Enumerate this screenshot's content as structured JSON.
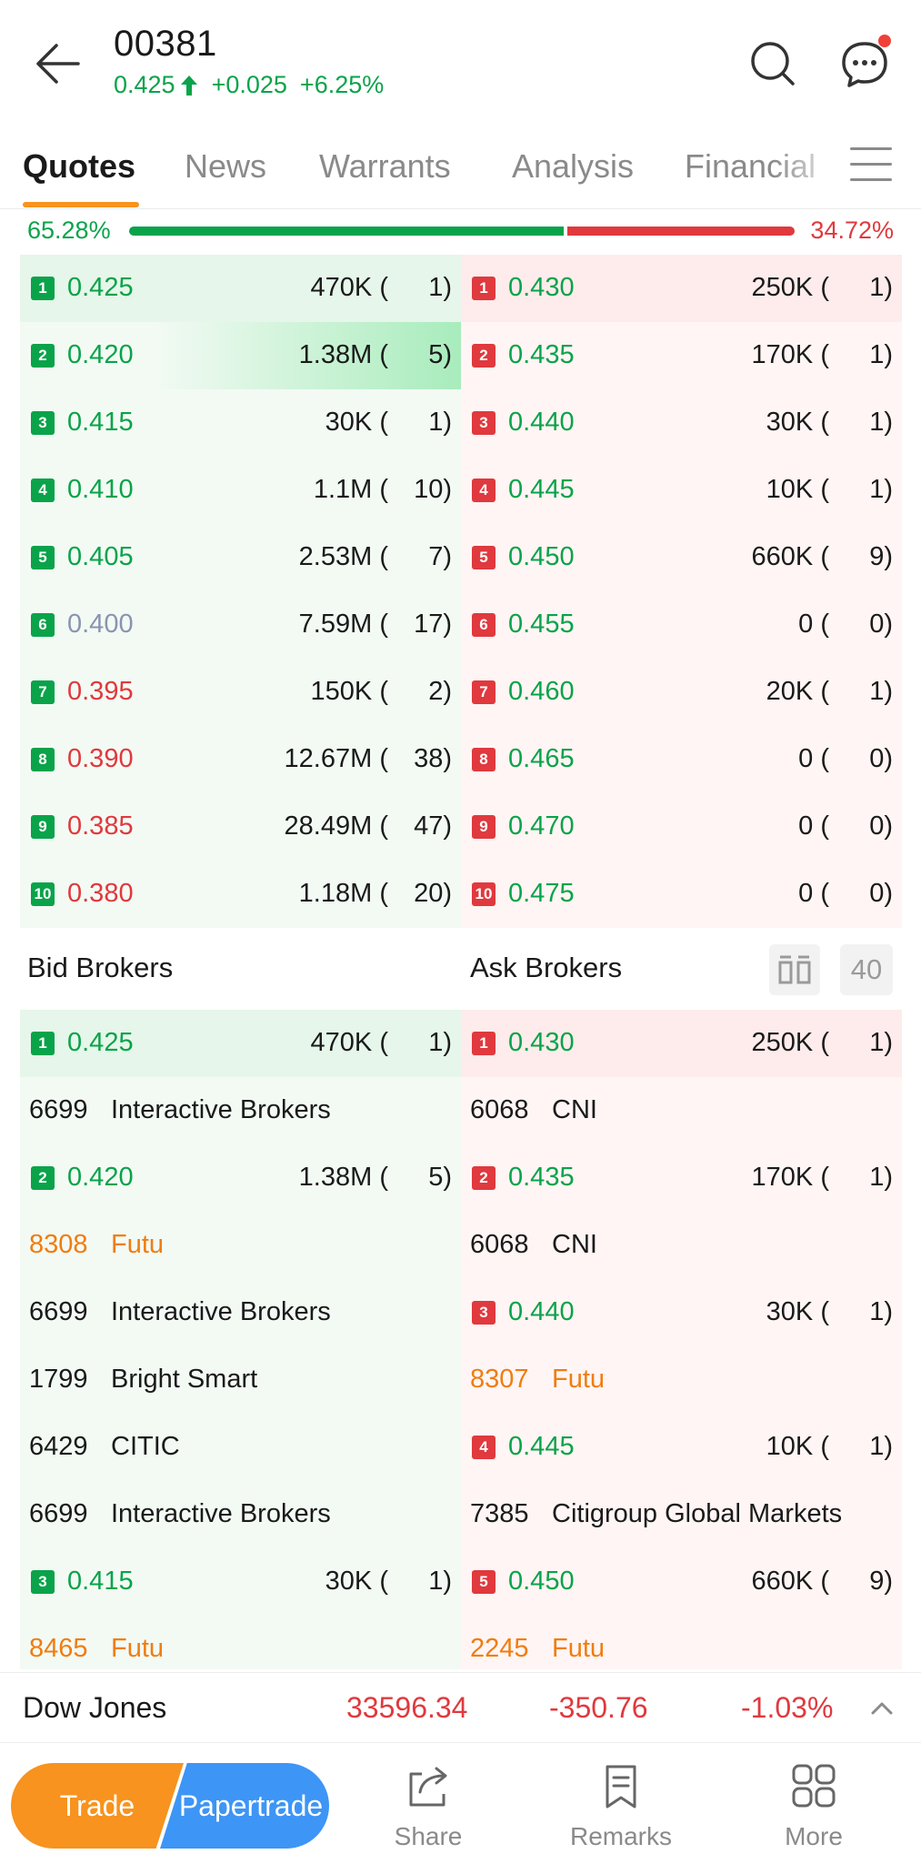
{
  "header": {
    "ticker": "00381",
    "price": "0.425",
    "change": "+0.025",
    "change_pct": "+6.25%"
  },
  "tabs": [
    {
      "label": "Quotes",
      "active": true
    },
    {
      "label": "News"
    },
    {
      "label": "Warrants"
    },
    {
      "label": "Analysis"
    },
    {
      "label": "Financial"
    }
  ],
  "ratio": {
    "bid_pct": "65.28%",
    "ask_pct": "34.72%",
    "bid_fraction": 0.6528
  },
  "book": {
    "bids": [
      {
        "level": "1",
        "price": "0.425",
        "color": "green",
        "volume": "470K (",
        "count": "1)"
      },
      {
        "level": "2",
        "price": "0.420",
        "color": "green",
        "volume": "1.38M (",
        "count": "5)",
        "depth": 0.7
      },
      {
        "level": "3",
        "price": "0.415",
        "color": "green",
        "volume": "30K (",
        "count": "1)"
      },
      {
        "level": "4",
        "price": "0.410",
        "color": "green",
        "volume": "1.1M (",
        "count": "10)"
      },
      {
        "level": "5",
        "price": "0.405",
        "color": "green",
        "volume": "2.53M (",
        "count": "7)"
      },
      {
        "level": "6",
        "price": "0.400",
        "color": "gray",
        "volume": "7.59M (",
        "count": "17)"
      },
      {
        "level": "7",
        "price": "0.395",
        "color": "red",
        "volume": "150K (",
        "count": "2)"
      },
      {
        "level": "8",
        "price": "0.390",
        "color": "red",
        "volume": "12.67M (",
        "count": "38)"
      },
      {
        "level": "9",
        "price": "0.385",
        "color": "red",
        "volume": "28.49M (",
        "count": "47)"
      },
      {
        "level": "10",
        "price": "0.380",
        "color": "red",
        "volume": "1.18M (",
        "count": "20)"
      }
    ],
    "asks": [
      {
        "level": "1",
        "price": "0.430",
        "color": "green",
        "volume": "250K (",
        "count": "1)"
      },
      {
        "level": "2",
        "price": "0.435",
        "color": "green",
        "volume": "170K (",
        "count": "1)"
      },
      {
        "level": "3",
        "price": "0.440",
        "color": "green",
        "volume": "30K (",
        "count": "1)"
      },
      {
        "level": "4",
        "price": "0.445",
        "color": "green",
        "volume": "10K (",
        "count": "1)"
      },
      {
        "level": "5",
        "price": "0.450",
        "color": "green",
        "volume": "660K (",
        "count": "9)"
      },
      {
        "level": "6",
        "price": "0.455",
        "color": "green",
        "volume": "0 (",
        "count": "0)"
      },
      {
        "level": "7",
        "price": "0.460",
        "color": "green",
        "volume": "20K (",
        "count": "1)"
      },
      {
        "level": "8",
        "price": "0.465",
        "color": "green",
        "volume": "0 (",
        "count": "0)"
      },
      {
        "level": "9",
        "price": "0.470",
        "color": "green",
        "volume": "0 (",
        "count": "0)"
      },
      {
        "level": "10",
        "price": "0.475",
        "color": "green",
        "volume": "0 (",
        "count": "0)"
      }
    ]
  },
  "brokers": {
    "bid_title": "Bid Brokers",
    "ask_title": "Ask Brokers",
    "count_button": "40",
    "bid_rows": [
      {
        "type": "level",
        "level": "1",
        "price": "0.425",
        "volume": "470K (",
        "count": "1)"
      },
      {
        "type": "broker",
        "id": "6699",
        "name": "Interactive Brokers",
        "color": "plain"
      },
      {
        "type": "level",
        "level": "2",
        "price": "0.420",
        "volume": "1.38M (",
        "count": "5)"
      },
      {
        "type": "broker",
        "id": "8308",
        "name": "Futu",
        "color": "orange"
      },
      {
        "type": "broker",
        "id": "6699",
        "name": "Interactive Brokers",
        "color": "plain"
      },
      {
        "type": "broker",
        "id": "1799",
        "name": "Bright Smart",
        "color": "plain"
      },
      {
        "type": "broker",
        "id": "6429",
        "name": "CITIC",
        "color": "plain"
      },
      {
        "type": "broker",
        "id": "6699",
        "name": "Interactive Brokers",
        "color": "plain"
      },
      {
        "type": "level",
        "level": "3",
        "price": "0.415",
        "volume": "30K (",
        "count": "1)"
      },
      {
        "type": "broker",
        "id": "8465",
        "name": "Futu",
        "color": "orange"
      }
    ],
    "ask_rows": [
      {
        "type": "level",
        "level": "1",
        "price": "0.430",
        "volume": "250K (",
        "count": "1)"
      },
      {
        "type": "broker",
        "id": "6068",
        "name": "CNI",
        "color": "plain"
      },
      {
        "type": "level",
        "level": "2",
        "price": "0.435",
        "volume": "170K (",
        "count": "1)"
      },
      {
        "type": "broker",
        "id": "6068",
        "name": "CNI",
        "color": "plain"
      },
      {
        "type": "level",
        "level": "3",
        "price": "0.440",
        "volume": "30K (",
        "count": "1)"
      },
      {
        "type": "broker",
        "id": "8307",
        "name": "Futu",
        "color": "orange"
      },
      {
        "type": "level",
        "level": "4",
        "price": "0.445",
        "volume": "10K (",
        "count": "1)"
      },
      {
        "type": "broker",
        "id": "7385",
        "name": "Citigroup Global Markets",
        "color": "plain"
      },
      {
        "type": "level",
        "level": "5",
        "price": "0.450",
        "volume": "660K (",
        "count": "9)"
      },
      {
        "type": "broker",
        "id": "2245",
        "name": "Futu",
        "color": "orange"
      }
    ]
  },
  "index_bar": {
    "name": "Dow Jones",
    "value": "33596.34",
    "change": "-350.76",
    "change_pct": "-1.03%"
  },
  "bottom_nav": {
    "trade": "Trade",
    "papertrade": "Papertrade",
    "items": [
      {
        "label": "Share",
        "icon": "share-icon"
      },
      {
        "label": "Remarks",
        "icon": "remarks-icon"
      },
      {
        "label": "More",
        "icon": "more-grid-icon"
      }
    ]
  },
  "colors": {
    "green": "#0aa34a",
    "red": "#e0393e",
    "orange": "#f7931e",
    "blue": "#3d95f6",
    "broker_orange": "#f07d10"
  }
}
